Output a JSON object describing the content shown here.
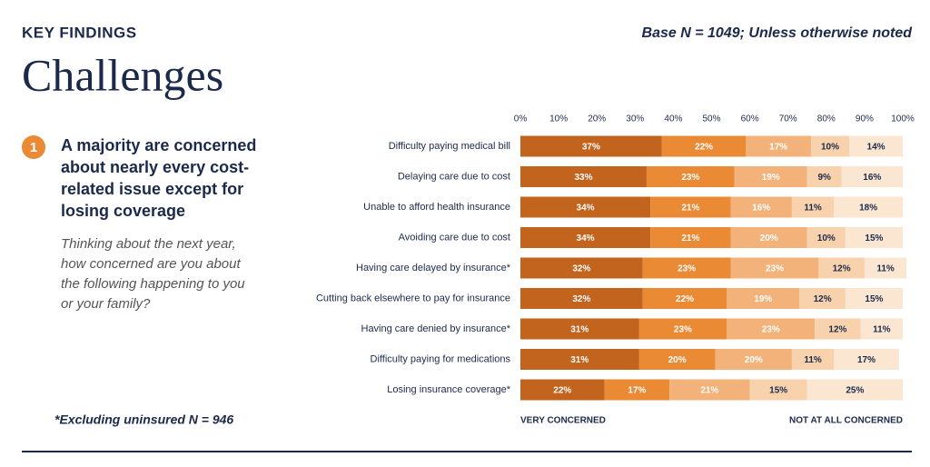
{
  "header": {
    "kicker": "KEY FINDINGS",
    "title": "Challenges",
    "base_note": "Base N = 1049; Unless otherwise noted",
    "finding_number": "1",
    "finding": "A majority are concerned about nearly every cost-related issue except for losing coverage",
    "question": "Thinking about the next year, how concerned are you about the following happening to you or your family?",
    "footnote": "*Excluding uninsured  N = 946"
  },
  "chart_data": {
    "type": "stacked_barh",
    "categories": [
      "Difficulty paying medical bill",
      "Delaying care due to cost",
      "Unable to afford health insurance",
      "Avoiding care due to cost",
      "Having care delayed by insurance*",
      "Cutting back elsewhere to pay for insurance",
      "Having care denied by insurance*",
      "Difficulty paying for medications",
      "Losing insurance coverage*"
    ],
    "series": [
      {
        "color": "#c2631e",
        "values": [
          37,
          33,
          34,
          34,
          32,
          32,
          31,
          31,
          22
        ],
        "value_labels": [
          "37%",
          "33%",
          "34%",
          "34%",
          "32%",
          "32%",
          "31%",
          "31%",
          "22%"
        ]
      },
      {
        "color": "#ea8a35",
        "values": [
          22,
          23,
          21,
          21,
          23,
          22,
          23,
          20,
          17
        ],
        "value_labels": [
          "22%",
          "23%",
          "21%",
          "21%",
          "23%",
          "22%",
          "23%",
          "20%",
          "17%"
        ]
      },
      {
        "color": "#f3b27a",
        "values": [
          17,
          19,
          16,
          20,
          23,
          19,
          23,
          20,
          21
        ],
        "value_labels": [
          "17%",
          "19%",
          "16%",
          "20%",
          "23%",
          "19%",
          "23%",
          "20%",
          "21%"
        ]
      },
      {
        "color": "#f8d2ad",
        "values": [
          10,
          9,
          11,
          10,
          12,
          12,
          12,
          11,
          15
        ],
        "value_labels": [
          "10%",
          "9%",
          "11%",
          "10%",
          "12%",
          "12%",
          "12%",
          "11%",
          "15%"
        ]
      },
      {
        "color": "#fbe6d1",
        "values": [
          14,
          16,
          18,
          15,
          11,
          15,
          11,
          17,
          25
        ],
        "value_labels": [
          "14%",
          "16%",
          "18%",
          "15%",
          "11%",
          "15%",
          "11%",
          "17%",
          "25%"
        ]
      }
    ],
    "xlim": [
      0,
      100
    ],
    "xticks": [
      {
        "value": 0,
        "label": "0%"
      },
      {
        "value": 10,
        "label": "10%"
      },
      {
        "value": 20,
        "label": "20%"
      },
      {
        "value": 30,
        "label": "30%"
      },
      {
        "value": 40,
        "label": "40%"
      },
      {
        "value": 50,
        "label": "50%"
      },
      {
        "value": 60,
        "label": "60%"
      },
      {
        "value": 70,
        "label": "70%"
      },
      {
        "value": 80,
        "label": "80%"
      },
      {
        "value": 90,
        "label": "90%"
      },
      {
        "value": 100,
        "label": "100%"
      }
    ],
    "left_label": "VERY CONCERNED",
    "right_label": "NOT AT ALL CONCERNED"
  }
}
